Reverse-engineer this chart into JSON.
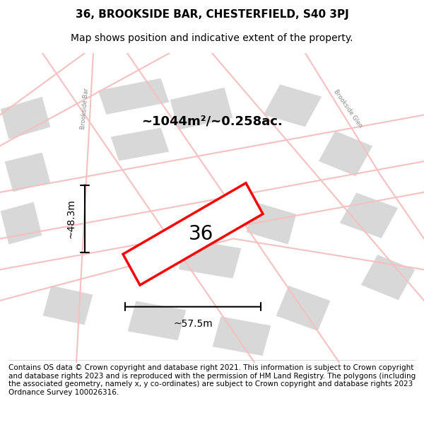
{
  "title": "36, BROOKSIDE BAR, CHESTERFIELD, S40 3PJ",
  "subtitle": "Map shows position and indicative extent of the property.",
  "footer": "Contains OS data © Crown copyright and database right 2021. This information is subject to Crown copyright and database rights 2023 and is reproduced with the permission of HM Land Registry. The polygons (including the associated geometry, namely x, y co-ordinates) are subject to Crown copyright and database rights 2023 Ordnance Survey 100026316.",
  "bg_color": "#f5f5f5",
  "map_bg_color": "#f0f0f0",
  "road_color": "#f5c0c0",
  "building_color": "#d8d8d8",
  "highlight_color": "#ff0000",
  "highlight_fill": "#ffffff",
  "area_label": "~1044m²/~0.258ac.",
  "property_number": "36",
  "dim_width": "~57.5m",
  "dim_height": "~48.3m",
  "title_fontsize": 11,
  "subtitle_fontsize": 10,
  "footer_fontsize": 7.5,
  "label_fontsize": 14,
  "area_fontsize": 13,
  "number_fontsize": 20
}
